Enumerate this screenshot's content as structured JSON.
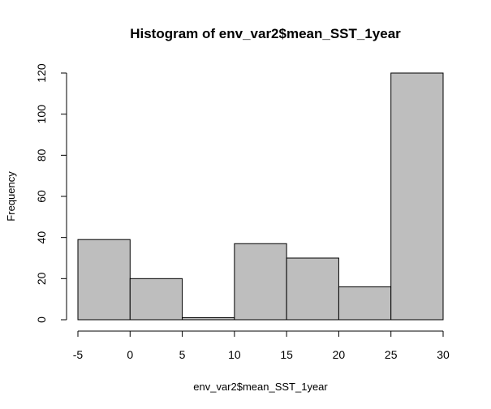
{
  "chart_data": {
    "type": "bar",
    "title": "Histogram of env_var2$mean_SST_1year",
    "xlabel": "env_var2$mean_SST_1year",
    "ylabel": "Frequency",
    "bins": [
      {
        "from": -5,
        "to": 0,
        "count": 39
      },
      {
        "from": 0,
        "to": 5,
        "count": 20
      },
      {
        "from": 5,
        "to": 10,
        "count": 1
      },
      {
        "from": 10,
        "to": 15,
        "count": 37
      },
      {
        "from": 15,
        "to": 20,
        "count": 30
      },
      {
        "from": 20,
        "to": 25,
        "count": 16
      },
      {
        "from": 25,
        "to": 30,
        "count": 120
      }
    ],
    "xlim": [
      -5,
      30
    ],
    "ylim": [
      0,
      120
    ],
    "x_ticks": [
      -5,
      0,
      5,
      10,
      15,
      20,
      25,
      30
    ],
    "y_ticks": [
      0,
      20,
      40,
      60,
      80,
      100,
      120
    ],
    "bar_color": "#bebebe",
    "grid": false
  }
}
